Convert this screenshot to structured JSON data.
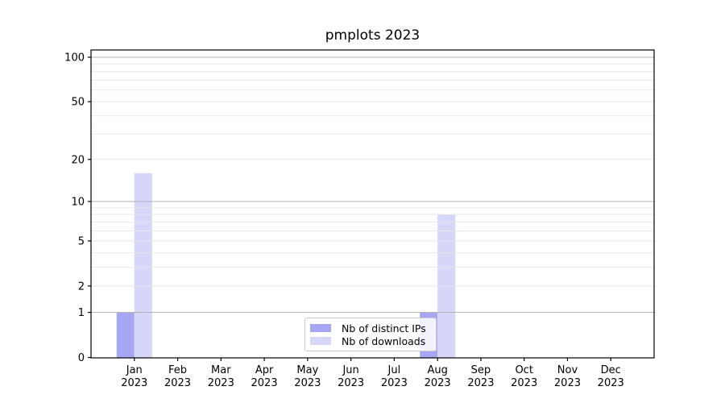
{
  "chart_data": {
    "type": "bar",
    "title": "pmplots 2023",
    "categories": [
      "Jan",
      "Feb",
      "Mar",
      "Apr",
      "May",
      "Jun",
      "Jul",
      "Aug",
      "Sep",
      "Oct",
      "Nov",
      "Dec"
    ],
    "x_year_label": "2023",
    "series": [
      {
        "name": "Nb of distinct IPs",
        "color": "#a6a6f4",
        "values": [
          1,
          0,
          0,
          0,
          0,
          0,
          0,
          1,
          0,
          0,
          0,
          0
        ]
      },
      {
        "name": "Nb of downloads",
        "color": "#d6d6f8",
        "values": [
          16,
          0,
          0,
          0,
          0,
          0,
          0,
          8,
          0,
          0,
          0,
          0
        ]
      }
    ],
    "yscale": "log10(1+v)",
    "ylim": [
      0,
      113
    ],
    "y_ticks": [
      0,
      1,
      2,
      5,
      10,
      20,
      50,
      100
    ],
    "y_major_gridlines": [
      1,
      10,
      100
    ],
    "y_minor_gridlines": [
      2,
      3,
      4,
      5,
      6,
      7,
      8,
      9,
      20,
      30,
      40,
      50,
      60,
      70,
      80,
      90
    ],
    "grid": "both",
    "legend_position": "lower center",
    "colors": {
      "axis": "#000000",
      "major_grid": "#b3b3b3",
      "minor_grid": "#e8e8e8",
      "background": "#ffffff"
    }
  }
}
